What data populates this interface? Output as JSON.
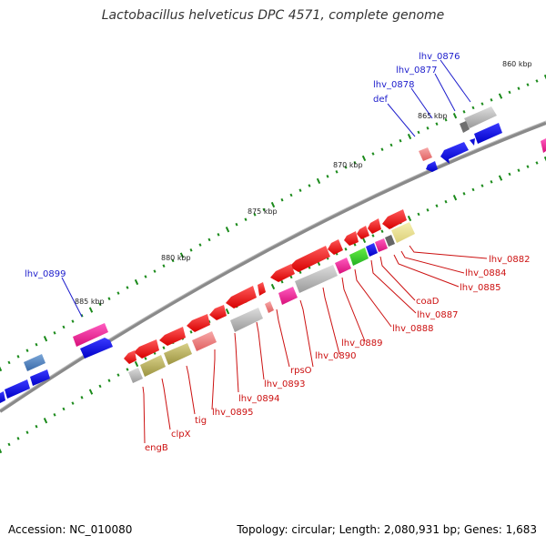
{
  "title": "Lactobacillus helveticus DPC 4571, complete genome",
  "footer": {
    "accession": "Accession: NC_010080",
    "topology": "Topology: circular; Length: 2,080,931 bp; Genes: 1,683"
  },
  "ticks": [
    "860 kbp",
    "865 kbp",
    "870 kbp",
    "875 kbp",
    "880 kbp",
    "885 kbp"
  ],
  "labels_forward": [
    "lhv_0876",
    "lhv_0877",
    "lhv_0878",
    "def",
    "lhv_0899"
  ],
  "labels_reverse": [
    "lhv_0882",
    "lhv_0884",
    "lhv_0885",
    "coaD",
    "lhv_0887",
    "lhv_0888",
    "lhv_0889",
    "lhv_0890",
    "rpsO",
    "lhv_0893",
    "lhv_0894",
    "lhv_0895",
    "tig",
    "clpX",
    "engB"
  ],
  "colors": {
    "forward_gene": "#0a0adc",
    "reverse_gene": "#ee1010",
    "backbone": "#777777",
    "tick_mark": "#1a8a1a",
    "label_forward": "#1c1ccc",
    "label_reverse": "#cc1010"
  }
}
